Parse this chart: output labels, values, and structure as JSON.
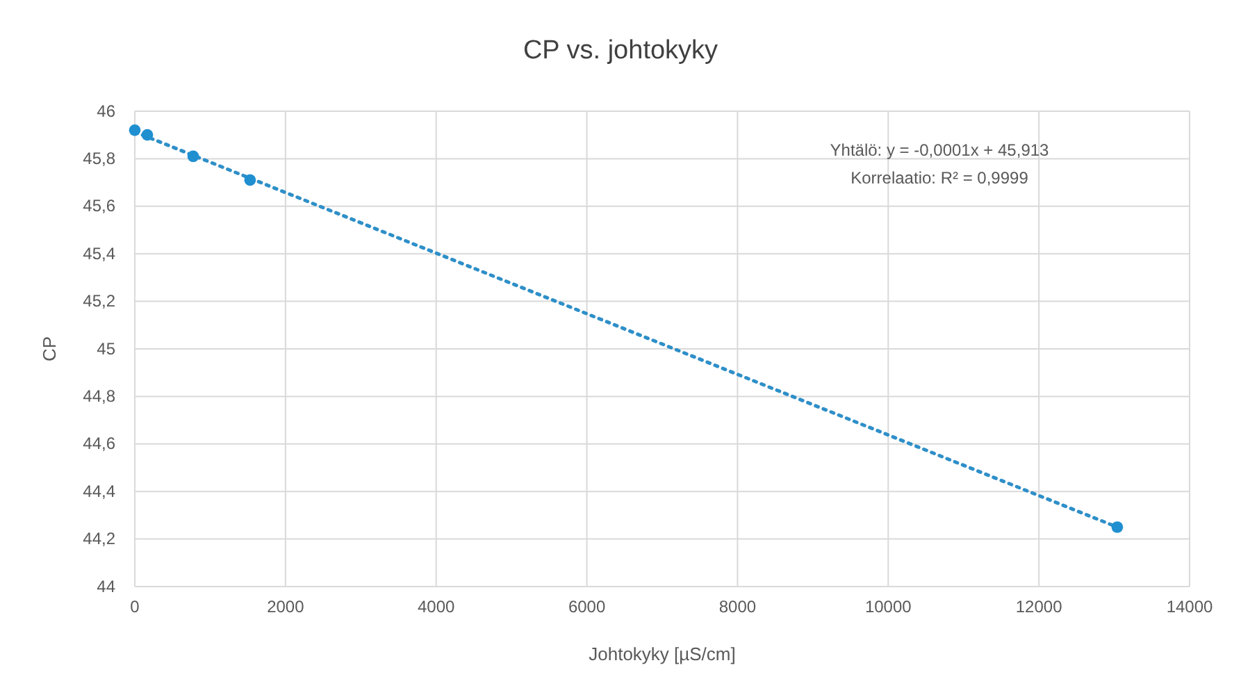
{
  "chart_data": {
    "type": "scatter",
    "title": "CP vs. johtokyky",
    "xlabel": "Johtokyky [µS/cm]",
    "ylabel": "CP",
    "xlim": [
      0,
      14000
    ],
    "xticks": [
      0,
      2000,
      4000,
      6000,
      8000,
      10000,
      12000,
      14000
    ],
    "ylim": [
      44,
      46
    ],
    "yticks": [
      46,
      {
        "value": 45.8,
        "label": "45,8"
      },
      {
        "value": 45.6,
        "label": "45,6"
      },
      {
        "value": 45.4,
        "label": "45,4"
      },
      {
        "value": 45.2,
        "label": "45,2"
      },
      45,
      {
        "value": 44.8,
        "label": "44,8"
      },
      {
        "value": 44.6,
        "label": "44,6"
      },
      {
        "value": 44.4,
        "label": "44,4"
      },
      {
        "value": 44.2,
        "label": "44,2"
      },
      44
    ],
    "grid": true,
    "marker": "circle",
    "series": [
      {
        "type": "line",
        "line_style": "dotted",
        "marker": "none",
        "color": "#2e8fc8",
        "x": [
          0,
          13040
        ],
        "values": [
          45.913,
          44.25
        ]
      },
      {
        "color": "#1f8fd0",
        "x": [
          0,
          166,
          775,
          1530,
          13040
        ],
        "values": [
          45.92,
          45.9,
          45.81,
          45.71,
          44.25
        ]
      }
    ],
    "annotations": [
      "Yhtälö: y = -0,0001x + 45,913",
      "Korrelaatio: R² = 0,9999"
    ]
  }
}
